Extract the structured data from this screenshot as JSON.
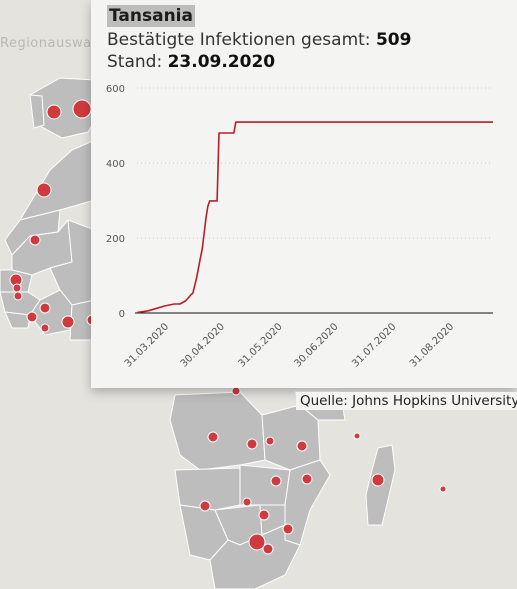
{
  "region_button": {
    "label": "Regionauswahl"
  },
  "popup": {
    "country": "Tansania",
    "infections_label": "Bestätigte Infektionen gesamt:",
    "infections_value": "509",
    "date_label": "Stand:",
    "date_value": "23.09.2020"
  },
  "source": "Quelle: Johns Hopkins University",
  "colors": {
    "background": "#e4e3de",
    "land": "#bdbdbd",
    "marker": "#cf3a3f",
    "line": "#b52028"
  },
  "chart_data": {
    "type": "line",
    "title": "",
    "xlabel": "",
    "ylabel": "",
    "ylim": [
      0,
      600
    ],
    "yticks": [
      0,
      200,
      400,
      600
    ],
    "xticks": [
      "31.03.2020",
      "30.04.2020",
      "31.05.2020",
      "30.06.2020",
      "31.07.2020",
      "31.08.2020"
    ],
    "x_range": [
      "2020-03-16",
      "2020-09-23"
    ],
    "grid": true,
    "series": [
      {
        "name": "",
        "color": "#b52028",
        "points": [
          [
            "2020-03-16",
            1
          ],
          [
            "2020-03-22",
            6
          ],
          [
            "2020-03-31",
            19
          ],
          [
            "2020-04-05",
            24
          ],
          [
            "2020-04-08",
            24
          ],
          [
            "2020-04-11",
            32
          ],
          [
            "2020-04-14",
            49
          ],
          [
            "2020-04-15",
            53
          ],
          [
            "2020-04-17",
            94
          ],
          [
            "2020-04-19",
            147
          ],
          [
            "2020-04-20",
            170
          ],
          [
            "2020-04-22",
            254
          ],
          [
            "2020-04-23",
            284
          ],
          [
            "2020-04-24",
            299
          ],
          [
            "2020-04-28",
            299
          ],
          [
            "2020-04-29",
            480
          ],
          [
            "2020-05-07",
            480
          ],
          [
            "2020-05-08",
            509
          ],
          [
            "2020-09-23",
            509
          ]
        ]
      }
    ]
  }
}
